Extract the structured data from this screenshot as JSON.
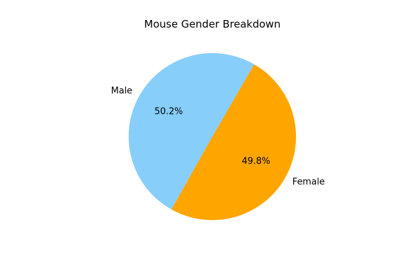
{
  "chart_data": {
    "type": "pie",
    "title": "Mouse Gender Breakdown",
    "slices": [
      {
        "label": "Male",
        "value": 50.2,
        "pct_label": "50.2%",
        "color": "#87CEFA"
      },
      {
        "label": "Female",
        "value": 49.8,
        "pct_label": "49.8%",
        "color": "#FFA500"
      }
    ]
  }
}
